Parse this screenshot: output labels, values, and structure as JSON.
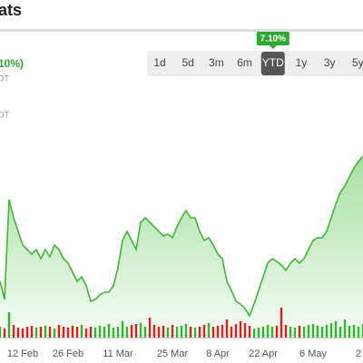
{
  "header": {
    "title": "ats",
    "change": "10%)",
    "note1": "DT",
    "note2": "DT"
  },
  "range": {
    "buttons": [
      "1d",
      "5d",
      "3m",
      "6m",
      "YTD",
      "1y",
      "3y",
      "5y"
    ],
    "active": 4,
    "badge": "7.10%"
  },
  "chart_data": {
    "type": "area",
    "color": "#3cb832",
    "categories": [
      null,
      null,
      null,
      null,
      null,
      "12 Feb",
      null,
      null,
      null,
      null,
      null,
      null,
      null,
      null,
      null,
      "26 Feb",
      null,
      null,
      null,
      null,
      null,
      null,
      null,
      null,
      null,
      null,
      "11 Mar",
      null,
      null,
      null,
      null,
      null,
      null,
      null,
      null,
      null,
      null,
      null,
      "25 Mar",
      null,
      null,
      null,
      null,
      null,
      null,
      null,
      null,
      null,
      "8 Apr",
      null,
      null,
      null,
      null,
      null,
      null,
      null,
      null,
      null,
      "22 Apr",
      null,
      null,
      null,
      null,
      null,
      null,
      null,
      null,
      null,
      null,
      "6 May",
      null,
      null,
      null,
      null,
      null,
      null,
      null,
      null,
      null,
      null,
      "2"
    ],
    "values": [
      60,
      40,
      150,
      130,
      115,
      100,
      95,
      90,
      95,
      85,
      95,
      87,
      100,
      95,
      85,
      80,
      70,
      60,
      65,
      55,
      38,
      40,
      45,
      48,
      48,
      55,
      75,
      105,
      115,
      105,
      95,
      125,
      130,
      125,
      120,
      115,
      110,
      112,
      108,
      120,
      130,
      138,
      130,
      130,
      115,
      105,
      108,
      100,
      90,
      85,
      60,
      50,
      38,
      35,
      30,
      22,
      35,
      50,
      65,
      80,
      85,
      82,
      78,
      72,
      80,
      85,
      80,
      85,
      95,
      105,
      108,
      108,
      115,
      130,
      145,
      158,
      165,
      175,
      185,
      192,
      198
    ],
    "ylim": [
      0,
      250
    ],
    "volume": {
      "values": [
        12,
        10,
        28,
        14,
        11,
        10,
        12,
        13,
        11,
        12,
        13,
        12,
        10,
        14,
        12,
        11,
        13,
        12,
        14,
        10,
        12,
        11,
        13,
        12,
        15,
        11,
        12,
        18,
        12,
        14,
        15,
        16,
        12,
        22,
        14,
        12,
        13,
        11,
        14,
        12,
        13,
        15,
        12,
        11,
        12,
        14,
        16,
        12,
        13,
        14,
        20,
        12,
        15,
        18,
        16,
        13,
        10,
        11,
        12,
        14,
        12,
        13,
        33,
        14,
        12,
        11,
        13,
        12,
        14,
        15,
        13,
        12,
        14,
        16,
        18,
        12,
        20,
        13,
        14,
        12,
        15
      ],
      "up_color": "#2fb82f",
      "down_color": "#e01e1e",
      "ylim": [
        0,
        40
      ]
    }
  }
}
